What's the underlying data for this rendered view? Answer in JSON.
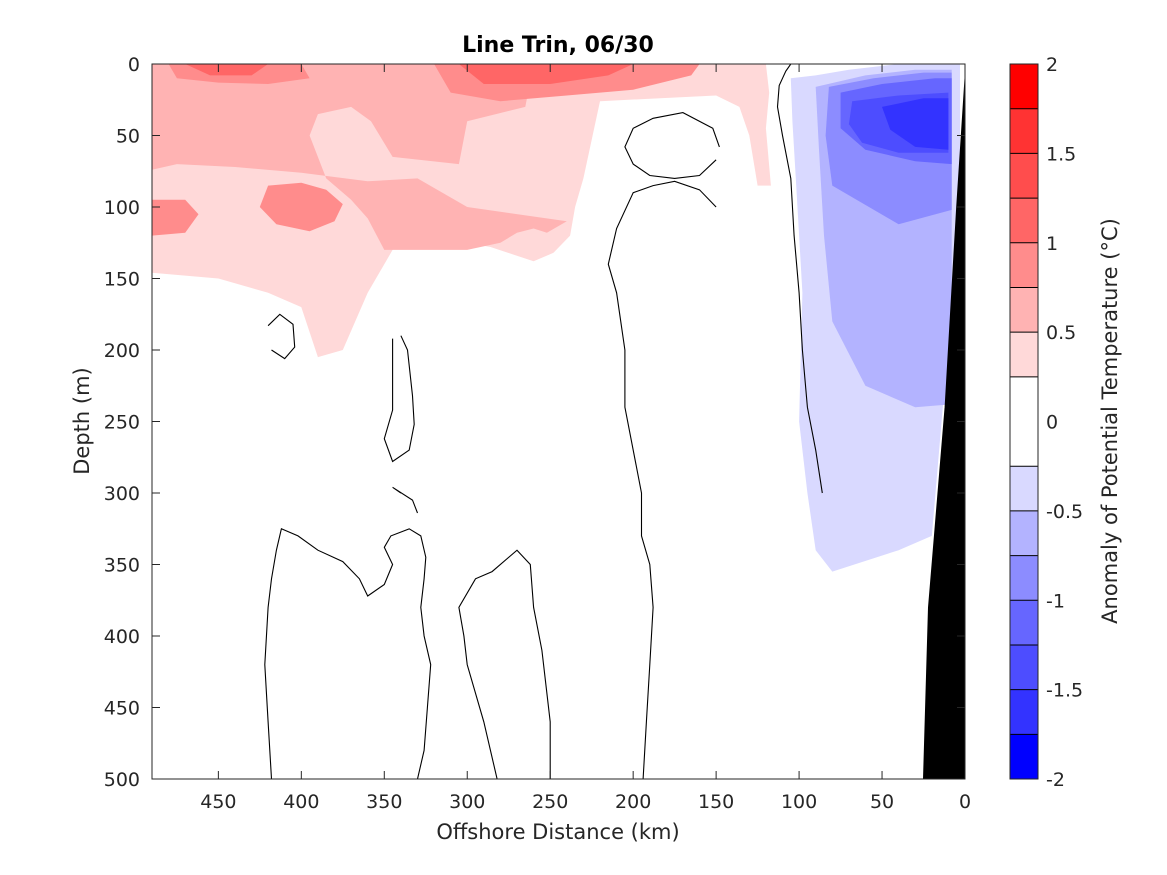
{
  "chart_data": {
    "type": "heatmap",
    "title": "Line Trin, 06/30",
    "xlabel": "Offshore Distance (km)",
    "ylabel": "Depth (m)",
    "xlim": [
      490,
      0
    ],
    "ylim": [
      0,
      500
    ],
    "x_reversed": true,
    "y_reversed": true,
    "x_ticks": [
      450,
      400,
      350,
      300,
      250,
      200,
      150,
      100,
      50,
      0
    ],
    "y_ticks": [
      0,
      50,
      100,
      150,
      200,
      250,
      300,
      350,
      400,
      450,
      500
    ],
    "colorbar": {
      "label": "Anomaly of Potential Temperature (°C)",
      "range": [
        -2,
        2
      ],
      "ticks": [
        2,
        1.5,
        1,
        0.5,
        0,
        -0.5,
        -1,
        -1.5,
        -2
      ],
      "levels": [
        {
          "from": 1.75,
          "to": 2.0,
          "color": "#ff0000"
        },
        {
          "from": 1.5,
          "to": 1.75,
          "color": "#ff3333"
        },
        {
          "from": 1.25,
          "to": 1.5,
          "color": "#ff4d4d"
        },
        {
          "from": 1.0,
          "to": 1.25,
          "color": "#ff6666"
        },
        {
          "from": 0.75,
          "to": 1.0,
          "color": "#ff8c8c"
        },
        {
          "from": 0.5,
          "to": 0.75,
          "color": "#ffb3b3"
        },
        {
          "from": 0.25,
          "to": 0.5,
          "color": "#ffd9d9"
        },
        {
          "from": -0.25,
          "to": 0.25,
          "color": "#ffffff"
        },
        {
          "from": -0.5,
          "to": -0.25,
          "color": "#d9d9ff"
        },
        {
          "from": -0.75,
          "to": -0.5,
          "color": "#b3b3ff"
        },
        {
          "from": -1.0,
          "to": -0.75,
          "color": "#8c8cff"
        },
        {
          "from": -1.25,
          "to": -1.0,
          "color": "#6666ff"
        },
        {
          "from": -1.5,
          "to": -1.25,
          "color": "#4d4dff"
        },
        {
          "from": -1.75,
          "to": -1.5,
          "color": "#3333ff"
        },
        {
          "from": -2.0,
          "to": -1.75,
          "color": "#0000ff"
        }
      ]
    },
    "regions": [
      {
        "name": "warm-layer-0.25",
        "anomaly": 0.375,
        "points": [
          [
            490,
            0
          ],
          [
            120,
            0
          ],
          [
            118,
            20
          ],
          [
            120,
            45
          ],
          [
            117,
            85
          ],
          [
            125,
            85
          ],
          [
            130,
            50
          ],
          [
            136,
            30
          ],
          [
            150,
            22
          ],
          [
            220,
            26
          ],
          [
            230,
            80
          ],
          [
            235,
            100
          ],
          [
            238,
            120
          ],
          [
            248,
            132
          ],
          [
            260,
            138
          ],
          [
            286,
            128
          ],
          [
            320,
            121
          ],
          [
            335,
            120
          ],
          [
            345,
            130
          ],
          [
            360,
            160
          ],
          [
            375,
            200
          ],
          [
            390,
            205
          ],
          [
            400,
            170
          ],
          [
            420,
            160
          ],
          [
            450,
            150
          ],
          [
            490,
            146
          ]
        ]
      },
      {
        "name": "warm-layer-0.50",
        "anomaly": 0.625,
        "points": [
          [
            490,
            0
          ],
          [
            270,
            0
          ],
          [
            250,
            0
          ],
          [
            260,
            0
          ],
          [
            265,
            30
          ],
          [
            300,
            40
          ],
          [
            305,
            70
          ],
          [
            345,
            65
          ],
          [
            358,
            40
          ],
          [
            370,
            30
          ],
          [
            390,
            35
          ],
          [
            395,
            50
          ],
          [
            385,
            80
          ],
          [
            370,
            95
          ],
          [
            360,
            108
          ],
          [
            350,
            130
          ],
          [
            320,
            130
          ],
          [
            300,
            130
          ],
          [
            280,
            125
          ],
          [
            270,
            118
          ],
          [
            260,
            115
          ],
          [
            252,
            118
          ],
          [
            240,
            110
          ],
          [
            300,
            100
          ],
          [
            330,
            80
          ],
          [
            360,
            82
          ],
          [
            400,
            76
          ],
          [
            440,
            72
          ],
          [
            475,
            70
          ],
          [
            490,
            74
          ]
        ]
      },
      {
        "name": "warm-patch-1.00",
        "anomaly": 0.875,
        "points": [
          [
            400,
            83
          ],
          [
            420,
            85
          ],
          [
            425,
            100
          ],
          [
            415,
            112
          ],
          [
            395,
            117
          ],
          [
            380,
            110
          ],
          [
            375,
            98
          ],
          [
            385,
            88
          ]
        ]
      },
      {
        "name": "warm-patch-1.00b",
        "anomaly": 0.875,
        "points": [
          [
            490,
            95
          ],
          [
            470,
            95
          ],
          [
            462,
            105
          ],
          [
            470,
            118
          ],
          [
            490,
            120
          ]
        ]
      },
      {
        "name": "warm-surface-a",
        "anomaly": 0.875,
        "points": [
          [
            480,
            0
          ],
          [
            400,
            0
          ],
          [
            395,
            10
          ],
          [
            420,
            14
          ],
          [
            450,
            13
          ],
          [
            475,
            10
          ]
        ]
      },
      {
        "name": "warm-surface-b",
        "anomaly": 0.875,
        "points": [
          [
            320,
            0
          ],
          [
            160,
            0
          ],
          [
            165,
            8
          ],
          [
            200,
            18
          ],
          [
            240,
            22
          ],
          [
            280,
            26
          ],
          [
            310,
            20
          ]
        ]
      },
      {
        "name": "warm-surface-b-core",
        "anomaly": 1.125,
        "points": [
          [
            305,
            0
          ],
          [
            200,
            0
          ],
          [
            215,
            8
          ],
          [
            250,
            14
          ],
          [
            290,
            14
          ]
        ]
      },
      {
        "name": "warm-surface-a-core",
        "anomaly": 1.125,
        "points": [
          [
            470,
            0
          ],
          [
            420,
            0
          ],
          [
            430,
            8
          ],
          [
            455,
            8
          ]
        ]
      },
      {
        "name": "cool-shelf-0.25",
        "anomaly": -0.375,
        "points": [
          [
            105,
            10
          ],
          [
            90,
            8
          ],
          [
            70,
            4
          ],
          [
            40,
            0
          ],
          [
            3,
            0
          ],
          [
            3,
            100
          ],
          [
            20,
            330
          ],
          [
            40,
            340
          ],
          [
            80,
            355
          ],
          [
            90,
            340
          ],
          [
            95,
            300
          ],
          [
            100,
            250
          ],
          [
            98,
            160
          ],
          [
            102,
            80
          ],
          [
            104,
            40
          ]
        ]
      },
      {
        "name": "cool-shelf-0.50",
        "anomaly": -0.625,
        "points": [
          [
            90,
            16
          ],
          [
            60,
            8
          ],
          [
            30,
            4
          ],
          [
            8,
            4
          ],
          [
            8,
            238
          ],
          [
            30,
            240
          ],
          [
            60,
            225
          ],
          [
            80,
            180
          ],
          [
            85,
            120
          ],
          [
            88,
            60
          ]
        ]
      },
      {
        "name": "cool-shelf-0.75",
        "anomaly": -0.875,
        "points": [
          [
            82,
            16
          ],
          [
            55,
            10
          ],
          [
            25,
            6
          ],
          [
            8,
            6
          ],
          [
            8,
            102
          ],
          [
            40,
            112
          ],
          [
            80,
            85
          ],
          [
            84,
            50
          ]
        ]
      },
      {
        "name": "cool-shelf-1.00",
        "anomaly": -1.125,
        "points": [
          [
            75,
            20
          ],
          [
            50,
            14
          ],
          [
            18,
            10
          ],
          [
            8,
            10
          ],
          [
            8,
            70
          ],
          [
            30,
            68
          ],
          [
            60,
            60
          ],
          [
            75,
            45
          ]
        ]
      },
      {
        "name": "cool-shelf-1.25",
        "anomaly": -1.375,
        "points": [
          [
            68,
            26
          ],
          [
            40,
            22
          ],
          [
            10,
            20
          ],
          [
            10,
            62
          ],
          [
            40,
            62
          ],
          [
            62,
            55
          ],
          [
            70,
            42
          ]
        ]
      },
      {
        "name": "cool-shelf-1.50",
        "anomaly": -1.625,
        "points": [
          [
            50,
            30
          ],
          [
            25,
            24
          ],
          [
            10,
            24
          ],
          [
            10,
            60
          ],
          [
            30,
            58
          ],
          [
            45,
            46
          ]
        ]
      }
    ],
    "zero_contours": [
      [
        [
          105,
          0
        ],
        [
          108,
          5
        ],
        [
          110,
          10
        ],
        [
          112,
          15
        ],
        [
          113,
          30
        ],
        [
          110,
          50
        ],
        [
          105,
          80
        ],
        [
          103,
          120
        ],
        [
          100,
          160
        ],
        [
          98,
          200
        ],
        [
          95,
          240
        ],
        [
          90,
          270
        ],
        [
          86,
          300
        ]
      ],
      [
        [
          150,
          100
        ],
        [
          160,
          88
        ],
        [
          175,
          82
        ],
        [
          188,
          85
        ],
        [
          200,
          90
        ],
        [
          210,
          115
        ],
        [
          215,
          140
        ],
        [
          210,
          160
        ],
        [
          205,
          200
        ],
        [
          205,
          240
        ],
        [
          200,
          270
        ],
        [
          195,
          300
        ],
        [
          195,
          330
        ],
        [
          190,
          350
        ],
        [
          188,
          380
        ],
        [
          190,
          420
        ],
        [
          192,
          460
        ],
        [
          194,
          500
        ]
      ],
      [
        [
          150,
          67
        ],
        [
          160,
          78
        ],
        [
          175,
          80
        ],
        [
          190,
          78
        ],
        [
          200,
          70
        ],
        [
          205,
          58
        ],
        [
          200,
          45
        ],
        [
          188,
          38
        ],
        [
          170,
          34
        ],
        [
          152,
          45
        ],
        [
          148,
          58
        ]
      ],
      [
        [
          420,
          183
        ],
        [
          413,
          175
        ],
        [
          405,
          182
        ],
        [
          404,
          198
        ],
        [
          410,
          206
        ],
        [
          418,
          200
        ]
      ],
      [
        [
          340,
          190
        ],
        [
          336,
          200
        ],
        [
          333,
          232
        ],
        [
          332,
          252
        ],
        [
          335,
          270
        ],
        [
          345,
          278
        ],
        [
          350,
          262
        ],
        [
          345,
          242
        ],
        [
          345,
          215
        ],
        [
          345,
          192
        ]
      ],
      [
        [
          340,
          300
        ],
        [
          345,
          296
        ],
        [
          333,
          305
        ],
        [
          330,
          314
        ]
      ],
      [
        [
          418,
          500
        ],
        [
          420,
          460
        ],
        [
          422,
          420
        ],
        [
          420,
          380
        ],
        [
          418,
          360
        ],
        [
          415,
          340
        ],
        [
          412,
          325
        ],
        [
          402,
          330
        ],
        [
          390,
          340
        ],
        [
          375,
          348
        ],
        [
          365,
          360
        ],
        [
          360,
          372
        ],
        [
          350,
          364
        ],
        [
          345,
          350
        ],
        [
          350,
          338
        ],
        [
          346,
          330
        ],
        [
          335,
          325
        ],
        [
          328,
          330
        ],
        [
          325,
          345
        ],
        [
          326,
          360
        ],
        [
          328,
          380
        ],
        [
          326,
          400
        ],
        [
          322,
          420
        ],
        [
          324,
          450
        ],
        [
          326,
          480
        ],
        [
          330,
          500
        ]
      ],
      [
        [
          282,
          500
        ],
        [
          290,
          460
        ],
        [
          300,
          420
        ],
        [
          302,
          400
        ],
        [
          305,
          380
        ],
        [
          295,
          360
        ],
        [
          285,
          355
        ],
        [
          270,
          340
        ],
        [
          262,
          350
        ],
        [
          260,
          380
        ],
        [
          255,
          410
        ],
        [
          250,
          460
        ],
        [
          250,
          500
        ]
      ]
    ],
    "bathymetry": [
      [
        0,
        0
      ],
      [
        0,
        500
      ],
      [
        10,
        500
      ],
      [
        25,
        500
      ],
      [
        22,
        380
      ],
      [
        12,
        240
      ],
      [
        5,
        100
      ],
      [
        0,
        10
      ]
    ]
  }
}
